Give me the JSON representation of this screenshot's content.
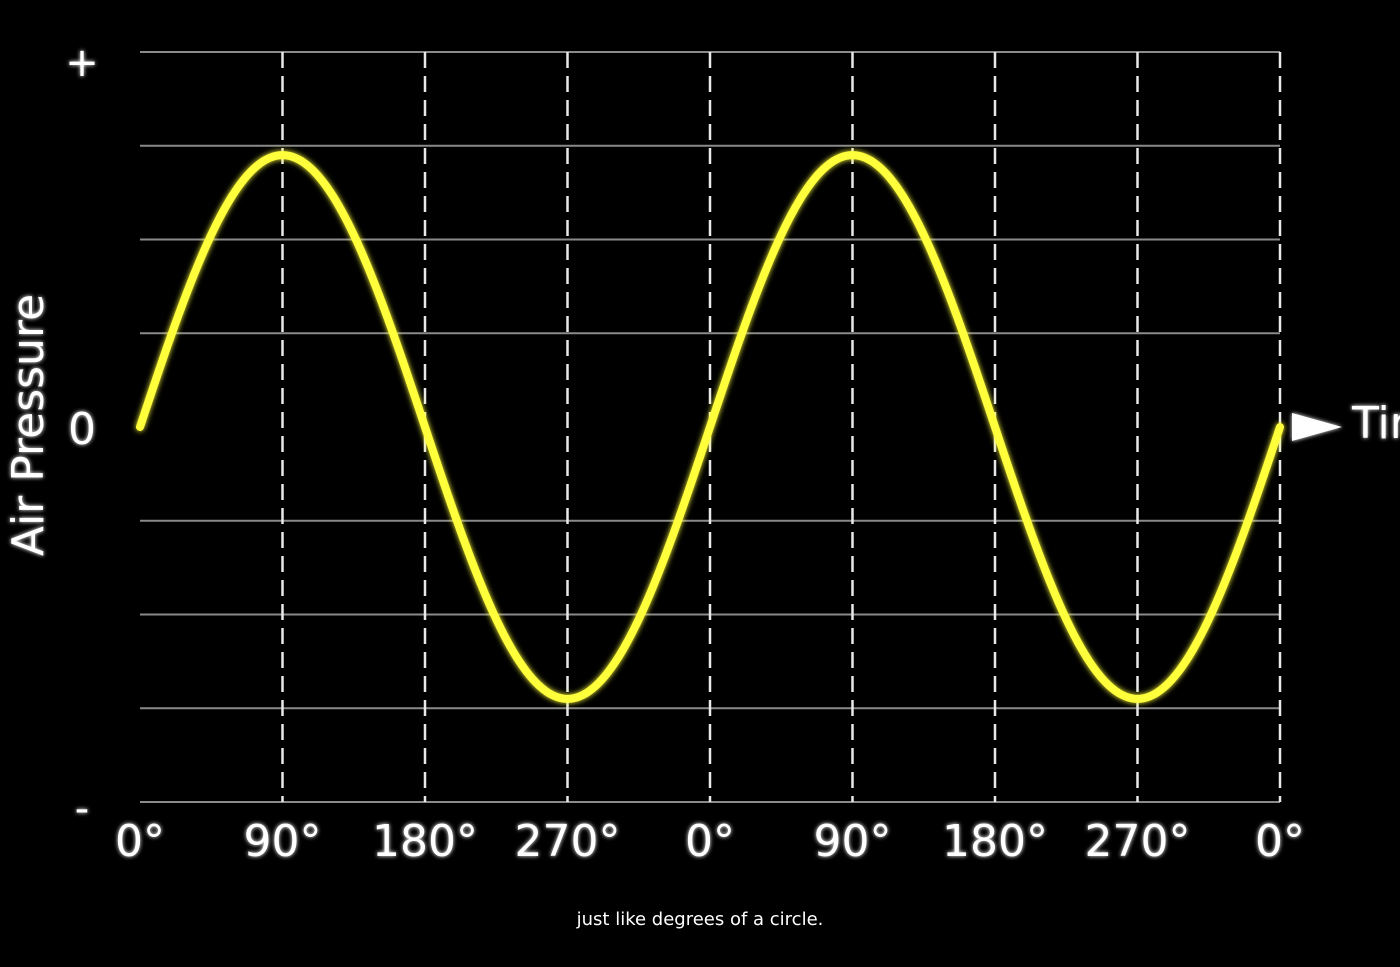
{
  "chart_data": {
    "type": "line",
    "title": "",
    "xlabel": "Time",
    "ylabel": "Air Pressure",
    "y_tick_labels": [
      "+",
      "0",
      "-"
    ],
    "x_tick_labels": [
      "0°",
      "90°",
      "180°",
      "270°",
      "0°",
      "90°",
      "180°",
      "270°",
      "0°"
    ],
    "xlim": [
      0,
      720
    ],
    "ylim": [
      -4,
      4
    ],
    "grid": true,
    "series": [
      {
        "color": "#ffff3a",
        "x": [
          0,
          45,
          90,
          135,
          180,
          225,
          270,
          315,
          360,
          405,
          450,
          495,
          540,
          585,
          630,
          675,
          720
        ],
        "y": [
          0,
          2.05,
          2.9,
          2.05,
          0,
          -2.05,
          -2.9,
          -2.05,
          0,
          2.05,
          2.9,
          2.05,
          0,
          -2.05,
          -2.9,
          -2.05,
          0
        ]
      }
    ]
  },
  "caption": "just like degrees of a circle."
}
